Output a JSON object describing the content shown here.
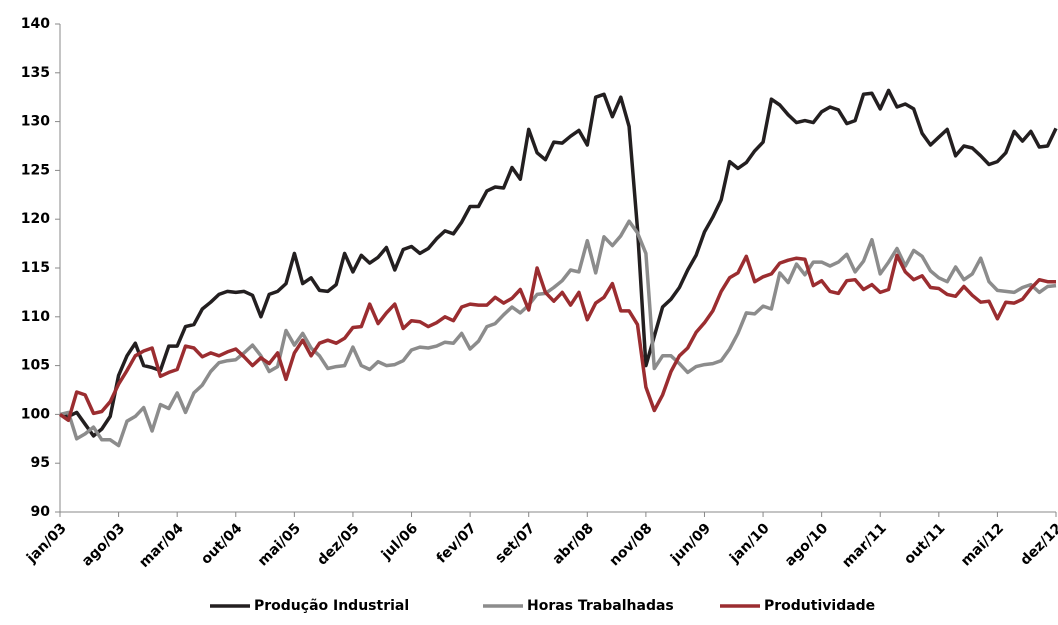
{
  "chart_data": {
    "type": "line",
    "categories": [
      "jan/03",
      null,
      null,
      null,
      null,
      null,
      null,
      "ago/03",
      null,
      null,
      null,
      null,
      null,
      null,
      "mar/04",
      null,
      null,
      null,
      null,
      null,
      null,
      "out/04",
      null,
      null,
      null,
      null,
      null,
      null,
      "mai/05",
      null,
      null,
      null,
      null,
      null,
      null,
      "dez/05",
      null,
      null,
      null,
      null,
      null,
      null,
      "jul/06",
      null,
      null,
      null,
      null,
      null,
      null,
      "fev/07",
      null,
      null,
      null,
      null,
      null,
      null,
      "set/07",
      null,
      null,
      null,
      null,
      null,
      null,
      "abr/08",
      null,
      null,
      null,
      null,
      null,
      null,
      "nov/08",
      null,
      null,
      null,
      null,
      null,
      null,
      "jun/09",
      null,
      null,
      null,
      null,
      null,
      null,
      "jan/10",
      null,
      null,
      null,
      null,
      null,
      null,
      "ago/10",
      null,
      null,
      null,
      null,
      null,
      null,
      "mar/11",
      null,
      null,
      null,
      null,
      null,
      null,
      "out/11",
      null,
      null,
      null,
      null,
      null,
      null,
      "mai/12",
      null,
      null,
      null,
      null,
      null,
      null,
      "dez/12"
    ],
    "series": [
      {
        "name": "Produção Industrial",
        "color": "#231f20",
        "values": [
          100,
          99.8,
          100.2,
          99,
          97.8,
          98.5,
          99.8,
          104,
          106,
          107.3,
          105,
          104.8,
          104.5,
          107,
          107,
          109,
          109.2,
          110.8,
          111.5,
          112.3,
          112.6,
          112.5,
          112.6,
          112.2,
          110,
          112.3,
          112.6,
          113.4,
          116.5,
          113.4,
          114,
          112.7,
          112.6,
          113.3,
          116.5,
          114.6,
          116.3,
          115.5,
          116.1,
          117.1,
          114.8,
          116.9,
          117.2,
          116.5,
          117,
          118,
          118.8,
          118.5,
          119.7,
          121.3,
          121.3,
          122.9,
          123.3,
          123.2,
          125.3,
          124.1,
          129.2,
          126.8,
          126.1,
          127.9,
          127.8,
          128.5,
          129.1,
          127.6,
          132.5,
          132.8,
          130.5,
          132.5,
          129.5,
          119,
          105,
          108,
          111,
          111.8,
          113,
          114.8,
          116.3,
          118.7,
          120.2,
          122,
          125.9,
          125.2,
          125.8,
          127,
          127.9,
          132.3,
          131.7,
          130.7,
          129.9,
          130.1,
          129.9,
          131,
          131.5,
          131.2,
          129.8,
          130.1,
          132.8,
          132.9,
          131.3,
          133.2,
          131.5,
          131.8,
          131.3,
          128.8,
          127.6,
          128.4,
          129.2,
          126.5,
          127.5,
          127.3,
          126.5,
          125.6,
          125.9,
          126.8,
          129,
          128,
          129,
          127.4,
          127.5,
          129.3
        ]
      },
      {
        "name": "Horas Trabalhadas",
        "color": "#8c8c8c",
        "values": [
          100,
          100.2,
          97.5,
          98,
          98.7,
          97.4,
          97.4,
          96.8,
          99.3,
          99.8,
          100.7,
          98.3,
          101,
          100.6,
          102.2,
          100.2,
          102.2,
          103,
          104.4,
          105.3,
          105.5,
          105.6,
          106.3,
          107.1,
          106,
          104.4,
          104.9,
          108.6,
          107.1,
          108.3,
          106.8,
          106,
          104.7,
          104.9,
          105,
          106.9,
          105,
          104.6,
          105.4,
          105,
          105.1,
          105.5,
          106.6,
          106.9,
          106.8,
          107,
          107.4,
          107.3,
          108.3,
          106.7,
          107.5,
          109,
          109.3,
          110.2,
          111,
          110.4,
          111.2,
          112.3,
          112.4,
          113,
          113.7,
          114.8,
          114.6,
          117.8,
          114.5,
          118.2,
          117.3,
          118.3,
          119.8,
          118.6,
          116.5,
          104.7,
          106,
          106,
          105.2,
          104.3,
          104.9,
          105.1,
          105.2,
          105.5,
          106.7,
          108.3,
          110.4,
          110.3,
          111.1,
          110.8,
          114.5,
          113.5,
          115.4,
          114.3,
          115.6,
          115.6,
          115.2,
          115.6,
          116.4,
          114.6,
          115.7,
          117.9,
          114.4,
          115.6,
          117,
          115.2,
          116.8,
          116.2,
          114.7,
          114,
          113.6,
          115.1,
          113.8,
          114.4,
          116,
          113.6,
          112.7,
          112.6,
          112.5,
          113,
          113.3,
          112.5,
          113.1,
          113.2
        ]
      },
      {
        "name": "Produtividade",
        "color": "#9b2d30",
        "values": [
          100,
          99.4,
          102.3,
          102,
          100.1,
          100.3,
          101.3,
          103.1,
          104.5,
          106,
          106.5,
          106.8,
          103.9,
          104.3,
          104.6,
          107,
          106.8,
          105.9,
          106.3,
          106,
          106.4,
          106.7,
          105.9,
          105,
          105.8,
          105.2,
          106.3,
          103.6,
          106.3,
          107.6,
          106,
          107.3,
          107.6,
          107.3,
          107.8,
          108.9,
          109,
          111.3,
          109.3,
          110.4,
          111.3,
          108.8,
          109.6,
          109.5,
          109,
          109.4,
          110,
          109.6,
          111,
          111.3,
          111.2,
          111.2,
          112,
          111.4,
          111.9,
          112.8,
          110.7,
          115,
          112.5,
          111.6,
          112.5,
          111.2,
          112.5,
          109.7,
          111.4,
          112,
          113.4,
          110.6,
          110.6,
          109.2,
          102.8,
          100.4,
          102,
          104.4,
          106,
          106.8,
          108.4,
          109.4,
          110.6,
          112.6,
          114,
          114.5,
          116.2,
          113.6,
          114.1,
          114.4,
          115.5,
          115.8,
          116,
          115.9,
          113.2,
          113.7,
          112.6,
          112.4,
          113.7,
          113.8,
          112.8,
          113.3,
          112.5,
          112.8,
          116.3,
          114.6,
          113.8,
          114.2,
          113,
          112.9,
          112.3,
          112.1,
          113.1,
          112.2,
          111.5,
          111.6,
          109.8,
          111.5,
          111.4,
          111.8,
          112.9,
          113.8,
          113.6,
          113.6
        ]
      }
    ],
    "ylim": [
      90,
      140
    ],
    "yticks": [
      90,
      95,
      100,
      105,
      110,
      115,
      120,
      125,
      130,
      135,
      140
    ],
    "grid": false,
    "legend": "bottom"
  }
}
